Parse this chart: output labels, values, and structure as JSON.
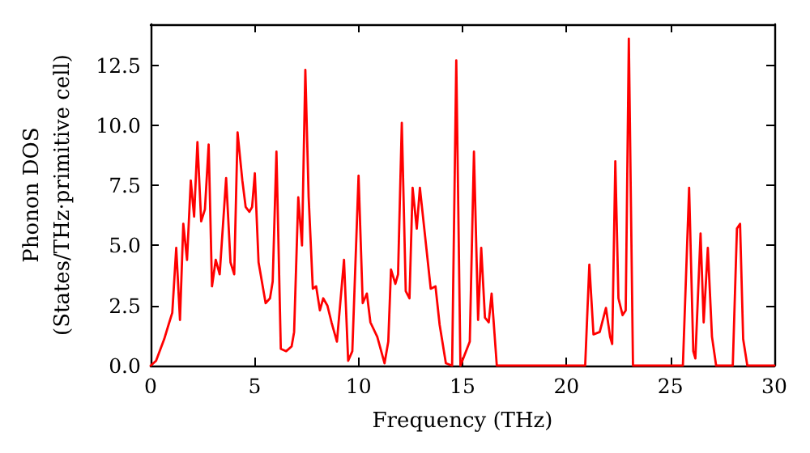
{
  "chart_data": {
    "type": "line",
    "xlabel": "Frequency (THz)",
    "ylabel": "Phonon DOS\n(States/THz·primitive cell)",
    "xlim": [
      0,
      30
    ],
    "xticks": [
      0,
      5,
      10,
      15,
      20,
      25,
      30
    ],
    "ylim": [
      0,
      14.2
    ],
    "yticks": [
      {
        "value": 0,
        "label": "0.0"
      },
      {
        "value": 2.5,
        "label": "2.5"
      },
      {
        "value": 5,
        "label": "5.0"
      },
      {
        "value": 7.5,
        "label": "7.5"
      },
      {
        "value": 10,
        "label": "10.0"
      },
      {
        "value": 12.5,
        "label": "12.5"
      }
    ],
    "grid": false,
    "marker": "none",
    "line_style": "solid",
    "series": [
      {
        "color": "#ff0000",
        "x": [
          0,
          0.26,
          0.65,
          0.86,
          1.04,
          1.23,
          1.41,
          1.57,
          1.75,
          1.93,
          2.09,
          2.25,
          2.43,
          2.61,
          2.79,
          2.95,
          3.13,
          3.32,
          3.63,
          3.84,
          4.02,
          4.18,
          4.41,
          4.57,
          4.75,
          4.88,
          5.01,
          5.19,
          5.53,
          5.74,
          5.87,
          6.05,
          6.26,
          6.52,
          6.78,
          6.9,
          7.1,
          7.28,
          7.44,
          7.6,
          7.8,
          7.96,
          8.14,
          8.3,
          8.5,
          8.7,
          8.96,
          9.3,
          9.5,
          9.7,
          10.0,
          10.2,
          10.4,
          10.57,
          10.9,
          11.25,
          11.43,
          11.56,
          11.77,
          11.9,
          12.08,
          12.27,
          12.45,
          12.6,
          12.8,
          12.95,
          13.26,
          13.47,
          13.7,
          13.9,
          14.2,
          14.5,
          14.7,
          14.9,
          15.35,
          15.55,
          15.75,
          15.9,
          16.08,
          16.26,
          16.4,
          16.65,
          20.9,
          21.1,
          21.3,
          21.6,
          21.9,
          22.1,
          22.2,
          22.35,
          22.5,
          22.7,
          22.85,
          23.0,
          23.2,
          25.6,
          25.9,
          26.1,
          26.2,
          26.45,
          26.6,
          26.8,
          27.0,
          27.2,
          28.0,
          28.2,
          28.35,
          28.5,
          28.7,
          30
        ],
        "values": [
          0,
          0.2,
          1.1,
          1.7,
          2.2,
          4.9,
          1.9,
          5.9,
          4.4,
          7.7,
          6.2,
          9.3,
          6.0,
          6.5,
          9.2,
          3.3,
          4.4,
          3.8,
          7.8,
          4.3,
          3.8,
          9.7,
          7.7,
          6.6,
          6.4,
          6.6,
          8.0,
          4.3,
          2.6,
          2.8,
          3.5,
          8.9,
          0.7,
          0.6,
          0.8,
          1.4,
          7.0,
          5.0,
          12.3,
          7.0,
          3.2,
          3.3,
          2.3,
          2.8,
          2.5,
          1.8,
          1.0,
          4.4,
          0.2,
          0.6,
          7.9,
          2.6,
          3.0,
          1.8,
          1.2,
          0.1,
          1.0,
          4.0,
          3.4,
          3.8,
          10.1,
          3.1,
          2.8,
          7.4,
          5.7,
          7.4,
          4.9,
          3.2,
          3.3,
          1.7,
          0.1,
          0,
          12.7,
          0,
          1.0,
          8.9,
          1.9,
          4.9,
          2.0,
          1.8,
          3.0,
          0,
          0,
          4.2,
          1.3,
          1.4,
          2.4,
          1.2,
          0.9,
          8.5,
          2.8,
          2.1,
          2.3,
          13.6,
          0,
          0,
          7.4,
          0.6,
          0.3,
          5.5,
          1.8,
          4.9,
          1.2,
          0,
          0,
          5.7,
          5.9,
          1.1,
          0,
          0
        ]
      }
    ]
  }
}
